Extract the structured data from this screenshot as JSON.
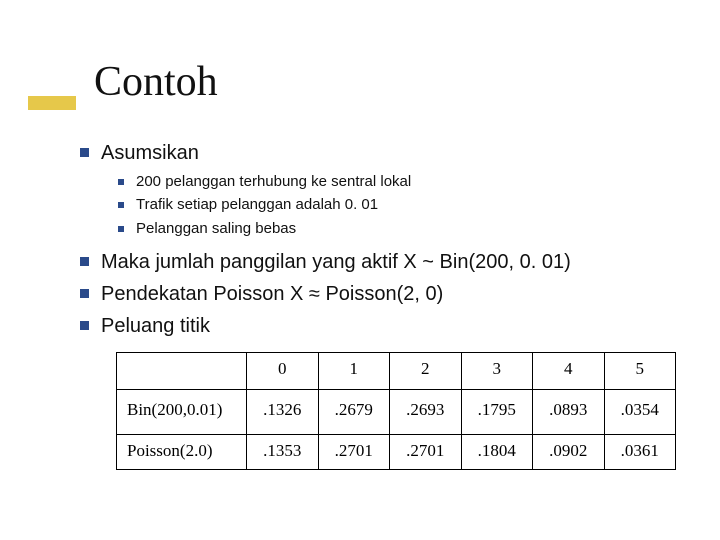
{
  "accent_color": "#e6c84a",
  "bullet_color": "#2a4a8a",
  "title": "Contoh",
  "bullets": {
    "asumsikan": {
      "label": "Asumsikan",
      "items": [
        "200 pelanggan terhubung ke sentral lokal",
        "Trafik setiap pelanggan adalah 0. 01",
        "Pelanggan saling bebas"
      ]
    },
    "b1": "Maka jumlah panggilan yang aktif X ~ Bin(200, 0. 01)",
    "b2": "Pendekatan Poisson X ≈ Poisson(2, 0)",
    "b3": "Peluang titik"
  },
  "table": {
    "headers": [
      "",
      "0",
      "1",
      "2",
      "3",
      "4",
      "5"
    ],
    "rows": [
      {
        "label": "Bin(200,0.01)",
        "cells": [
          ".1326",
          ".2679",
          ".2693",
          ".1795",
          ".0893",
          ".0354"
        ]
      },
      {
        "label": "Poisson(2.0)",
        "cells": [
          ".1353",
          ".2701",
          ".2701",
          ".1804",
          ".0902",
          ".0361"
        ]
      }
    ]
  }
}
